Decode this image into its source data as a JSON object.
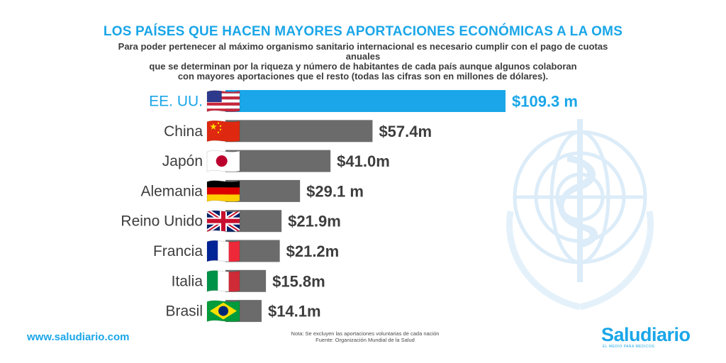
{
  "title": "LOS PAÍSES QUE HACEN MAYORES APORTACIONES ECONÓMICAS A LA OMS",
  "subtitle_lines": [
    "Para poder pertenecer al máximo organismo sanitario internacional es necesario cumplir con el pago de cuotas anuales",
    "que se determinan por la riqueza y número de habitantes de cada país aunque algunos colaboran",
    "con mayores aportaciones que el resto (todas las cifras son en millones de dólares)."
  ],
  "chart_data": {
    "type": "bar",
    "orientation": "horizontal",
    "unit": "millones de dólares",
    "categories": [
      "EE. UU.",
      "China",
      "Japón",
      "Alemania",
      "Reino Unido",
      "Francia",
      "Italia",
      "Brasil"
    ],
    "values": [
      109.3,
      57.4,
      41.0,
      29.1,
      21.9,
      21.2,
      15.8,
      14.1
    ],
    "value_labels": [
      "$109.3 m",
      "$57.4m",
      "$41.0m",
      "$29.1 m",
      "$21.9m",
      "$21.2m",
      "$15.8m",
      "$14.1m"
    ],
    "highlight_index": 0,
    "grid": false
  },
  "colors": {
    "accent": "#1aa6e8",
    "bar": "#6b6b6b",
    "label": "#3d3d3d"
  },
  "footer": {
    "website": "www.saludiario.com",
    "note": "Nota: Se excluyen las aportaciones voluntarias de cada nación",
    "source": "Fuente: Organización Mundial de la Salud",
    "logo_name": "Saludiario",
    "logo_tagline": "EL MEDIO PARA MÉDICOS"
  },
  "icons": [
    "flag-usa-icon",
    "flag-china-icon",
    "flag-japan-icon",
    "flag-germany-icon",
    "flag-uk-icon",
    "flag-france-icon",
    "flag-italy-icon",
    "flag-brazil-icon",
    "who-emblem-icon"
  ]
}
